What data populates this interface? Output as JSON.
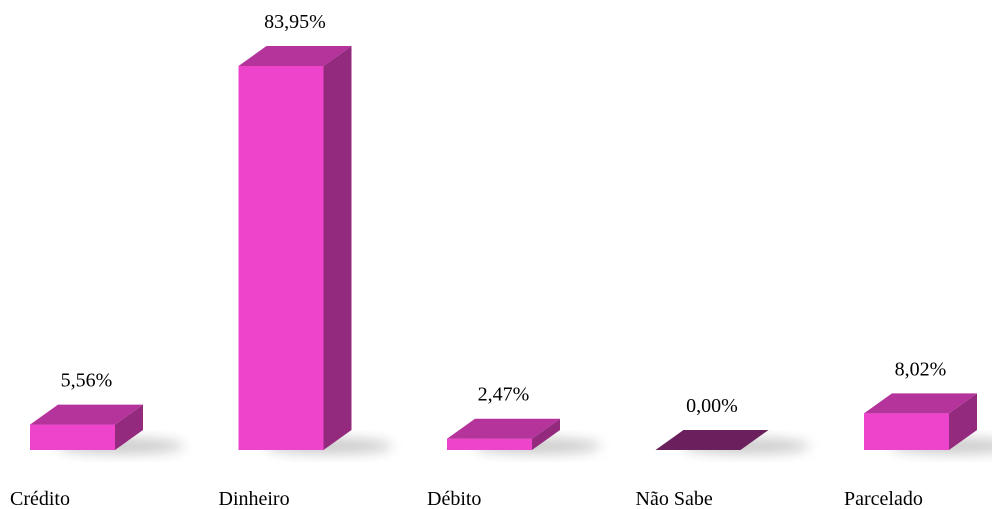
{
  "chart_data": {
    "type": "bar3d",
    "categories": [
      "Crédito",
      "Dinheiro",
      "Débito",
      "Não Sabe",
      "Parcelado"
    ],
    "values": [
      5.56,
      83.95,
      2.47,
      0,
      8.02
    ],
    "value_labels": [
      "5,56%",
      "83,95%",
      "2,47%",
      "0,00%",
      "8,02%"
    ],
    "color": "#ee44cc"
  }
}
